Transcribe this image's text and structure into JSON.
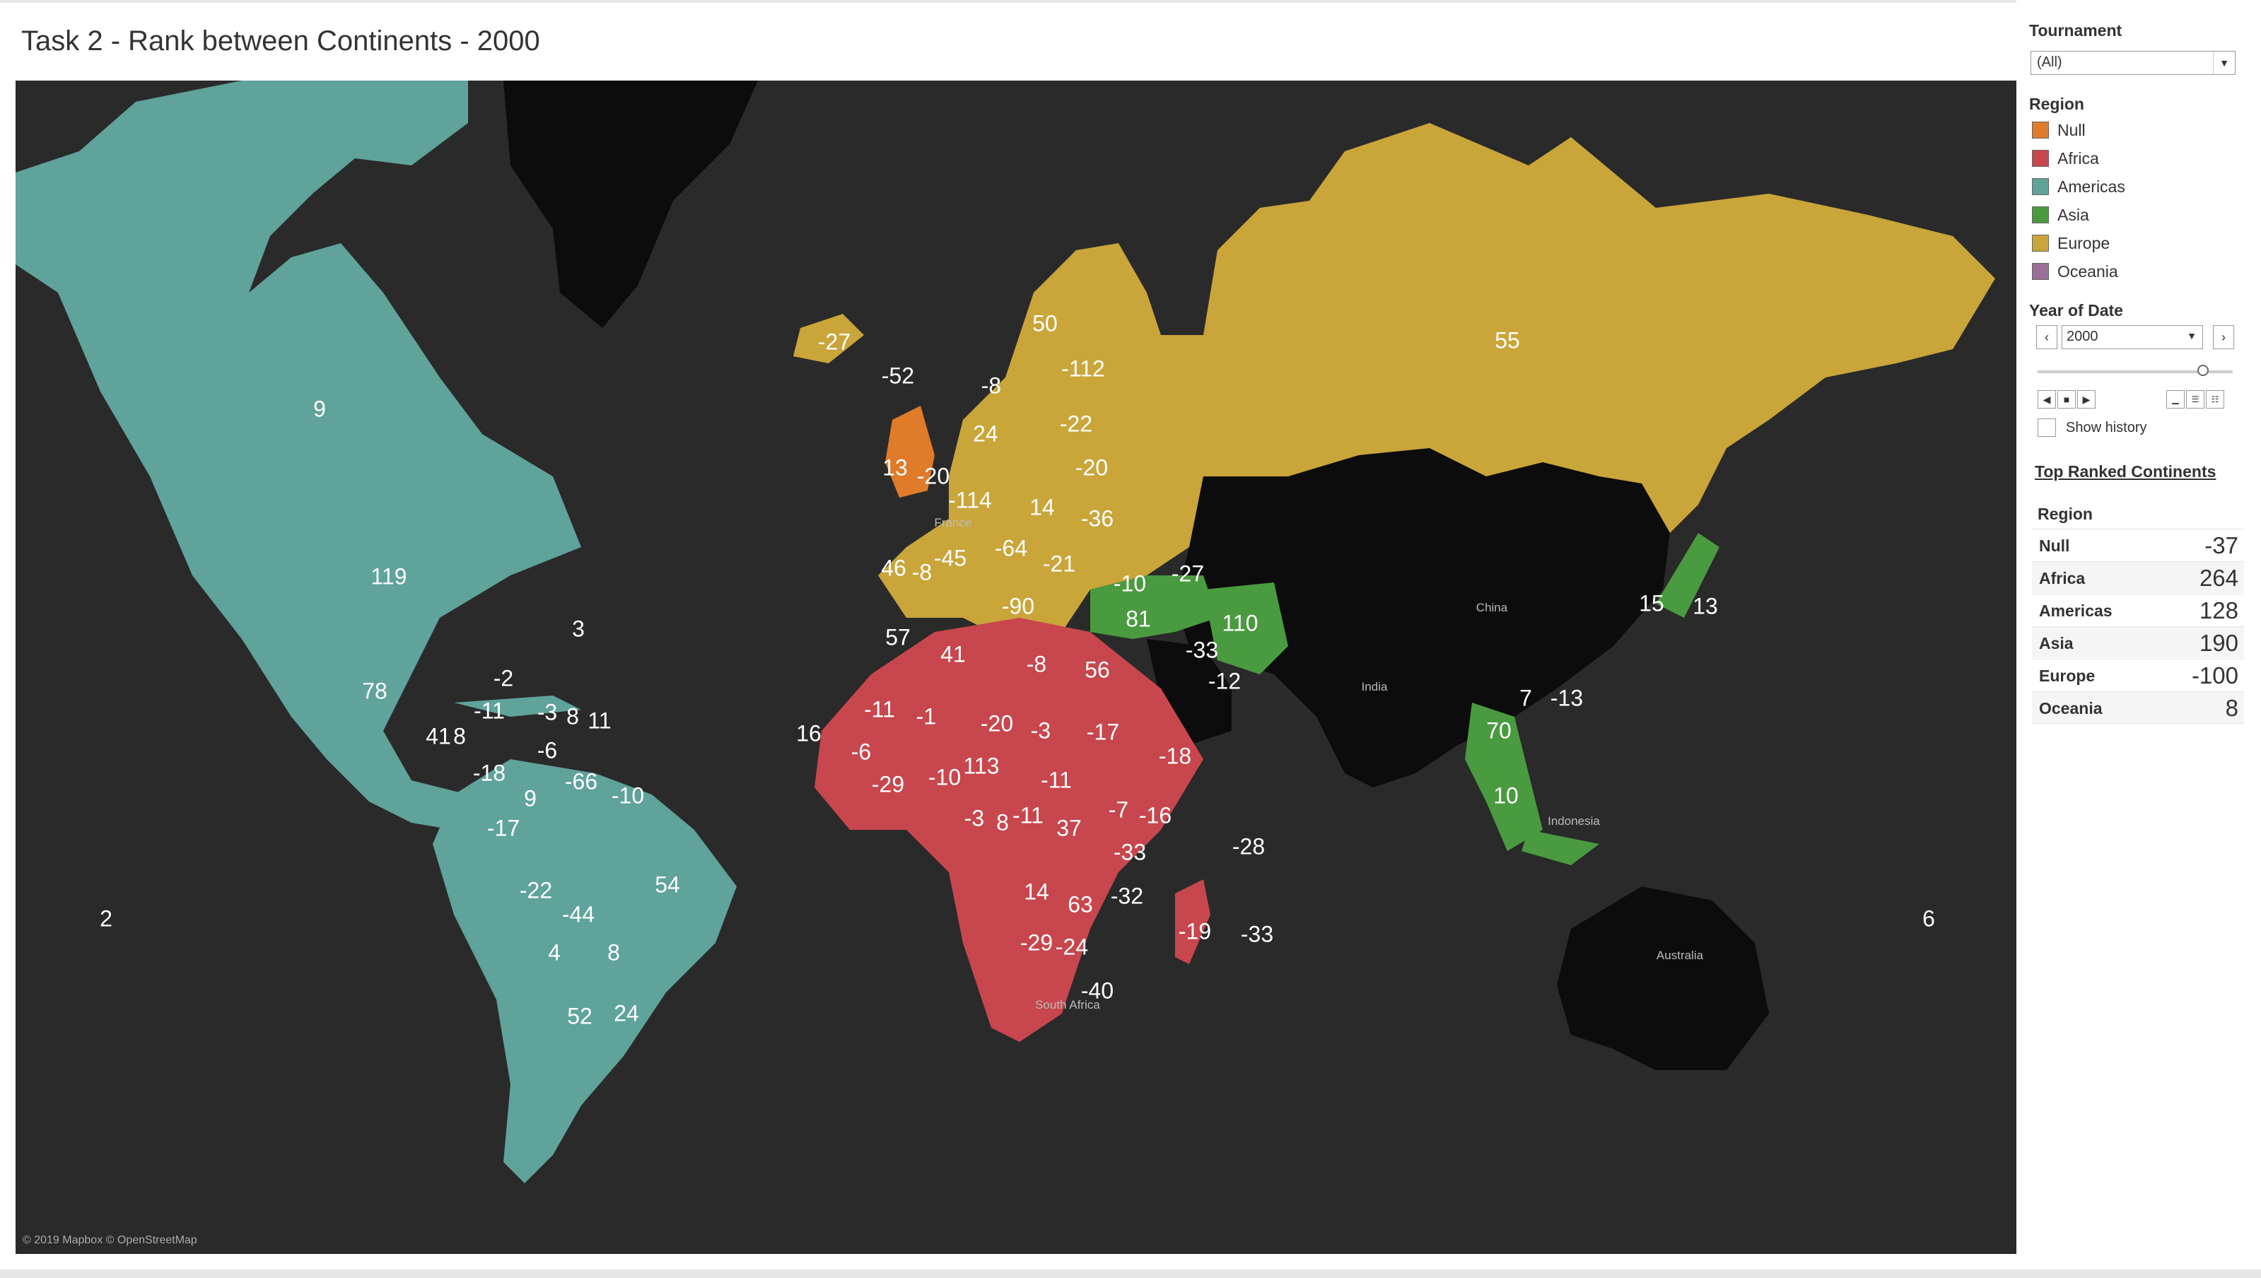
{
  "title": "Task 2 - Rank between Continents - 2000",
  "colors": {
    "null": "#e07b2a",
    "africa": "#c8464d",
    "americas": "#5fa39b",
    "asia": "#4a9a3f",
    "europe": "#c9a53a",
    "oceania": "#9b6f98",
    "ocean": "#2a2a2a",
    "land_nodata": "#0c0c0c"
  },
  "map": {
    "attribution": "© 2019 Mapbox © OpenStreetMap",
    "place_labels": [
      "France",
      "China",
      "India",
      "Indonesia",
      "Australia",
      "South Africa"
    ],
    "country_values": [
      "9",
      "119",
      "3",
      "78",
      "-2",
      "-11",
      "-3",
      "8",
      "11",
      "41",
      "8",
      "-18",
      "-6",
      "9",
      "-66",
      "-10",
      "-17",
      "-22",
      "-44",
      "54",
      "4",
      "8",
      "52",
      "24",
      "2",
      "16",
      "-27",
      "-52",
      "50",
      "-8",
      "-112",
      "55",
      "24",
      "-22",
      "13",
      "-20",
      "-20",
      "-114",
      "14",
      "-36",
      "-64",
      "-45",
      "46",
      "-8",
      "-21",
      "-90",
      "-10",
      "-27",
      "81",
      "110",
      "-33",
      "-12",
      "57",
      "41",
      "-8",
      "56",
      "-11",
      "-1",
      "-20",
      "-3",
      "-17",
      "-6",
      "-29",
      "-10",
      "113",
      "-11",
      "-18",
      "-3",
      "8",
      "-11",
      "37",
      "-7",
      "-16",
      "-33",
      "-28",
      "14",
      "63",
      "-32",
      "-19",
      "-33",
      "-29",
      "-24",
      "-40",
      "15",
      "13",
      "7",
      "-13",
      "70",
      "10",
      "6"
    ]
  },
  "filters": {
    "tournament_label": "Tournament",
    "tournament_value": "(All)",
    "region_label": "Region",
    "legend": [
      {
        "name": "Null",
        "color": "#e07b2a"
      },
      {
        "name": "Africa",
        "color": "#c8464d"
      },
      {
        "name": "Americas",
        "color": "#5fa39b"
      },
      {
        "name": "Asia",
        "color": "#4a9a3f"
      },
      {
        "name": "Europe",
        "color": "#c9a53a"
      },
      {
        "name": "Oceania",
        "color": "#9b6f98"
      }
    ],
    "year_label": "Year of Date",
    "year_value": "2000",
    "show_history": "Show history"
  },
  "top_ranked": {
    "title": "Top Ranked Continents",
    "column": "Region",
    "rows": [
      {
        "region": "Null",
        "value": "-37"
      },
      {
        "region": "Africa",
        "value": "264"
      },
      {
        "region": "Americas",
        "value": "128"
      },
      {
        "region": "Asia",
        "value": "190"
      },
      {
        "region": "Europe",
        "value": "-100"
      },
      {
        "region": "Oceania",
        "value": "8"
      }
    ]
  }
}
